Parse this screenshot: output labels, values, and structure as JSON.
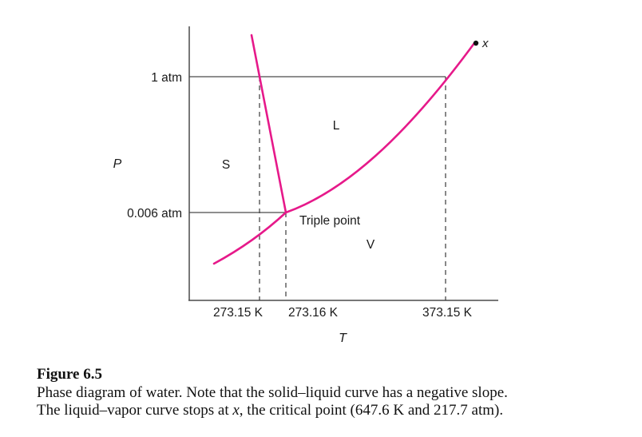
{
  "diagram": {
    "p_axis_label": "P",
    "t_axis_label": "T",
    "pressure_ticks": [
      "1 atm",
      "0.006 atm"
    ],
    "temperature_ticks": [
      "273.15 K",
      "273.16 K",
      "373.15 K"
    ],
    "region_solid": "S",
    "region_liquid": "L",
    "region_vapor": "V",
    "triple_point_label": "Triple point",
    "critical_point_label": "x",
    "curve_color": "#e6198a"
  },
  "caption": {
    "title": "Figure 6.5",
    "line1": "Phase diagram of water. Note that the solid–liquid curve has a negative slope.",
    "line2_prefix": "The liquid–vapor curve stops at ",
    "line2_italic": "x",
    "line2_suffix": ", the critical point (647.6 K and 217.7 atm)."
  }
}
